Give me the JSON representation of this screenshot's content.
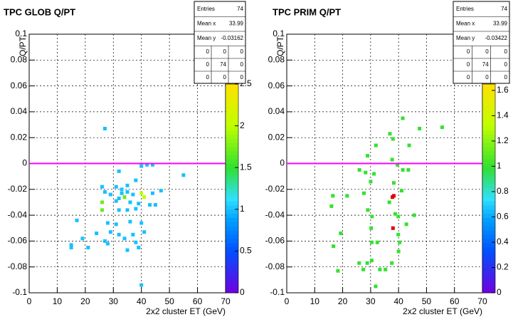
{
  "chart_data": [
    {
      "type": "heatmap2d",
      "title": "TPC GLOB Q/PT",
      "x_label": "2x2 cluster ET (GeV)",
      "y_label": "Q/PT",
      "xlim": [
        0,
        70
      ],
      "xticks": [
        0,
        10,
        20,
        30,
        40,
        50,
        60,
        70
      ],
      "ylim": [
        -0.1,
        0.1
      ],
      "yticks": [
        -0.1,
        -0.08,
        -0.06,
        -0.04,
        -0.02,
        0,
        0.02,
        0.04,
        0.06,
        0.08,
        0.1
      ],
      "zlim": [
        0,
        2.5
      ],
      "zticks": [
        0,
        0.5,
        1,
        1.5,
        2,
        2.5
      ],
      "grid": true,
      "reference_line": {
        "y": 0,
        "color": "#ff00ff"
      },
      "x": [
        27,
        32,
        40,
        42,
        44,
        55,
        26,
        31,
        35,
        38,
        33,
        27,
        29,
        33,
        35,
        37,
        40,
        41,
        44,
        47,
        34,
        32,
        26,
        31,
        36,
        39,
        43,
        45,
        26,
        32,
        35,
        38,
        17,
        28,
        31,
        36,
        40,
        24,
        29,
        32,
        37,
        41,
        19,
        27,
        28,
        34,
        38,
        15,
        15,
        21,
        35,
        39,
        40
      ],
      "y": [
        0.027,
        -0.006,
        -0.002,
        -0.001,
        -0.001,
        -0.009,
        -0.018,
        -0.018,
        -0.017,
        -0.013,
        -0.02,
        -0.022,
        -0.024,
        -0.023,
        -0.022,
        -0.024,
        -0.023,
        -0.026,
        -0.023,
        -0.021,
        -0.026,
        -0.027,
        -0.03,
        -0.029,
        -0.03,
        -0.031,
        -0.032,
        -0.032,
        -0.036,
        -0.036,
        -0.036,
        -0.035,
        -0.044,
        -0.046,
        -0.047,
        -0.045,
        -0.046,
        -0.054,
        -0.053,
        -0.055,
        -0.055,
        -0.053,
        -0.058,
        -0.06,
        -0.062,
        -0.058,
        -0.061,
        -0.063,
        -0.065,
        -0.065,
        -0.067,
        -0.065,
        -0.094
      ],
      "z": [
        1,
        1,
        1,
        1,
        1,
        1,
        1,
        1,
        1,
        1,
        1,
        1,
        1,
        1,
        1,
        1,
        2,
        2,
        1,
        1,
        1.7,
        1,
        1.7,
        1,
        1,
        1,
        1,
        1,
        1.7,
        1,
        1,
        1,
        1,
        1,
        1,
        1,
        1,
        1,
        1,
        1,
        1,
        1,
        1,
        1,
        1,
        1,
        1,
        1,
        1,
        1,
        1,
        1,
        1
      ],
      "stats": {
        "labels": [
          "Entries",
          "Mean x",
          "Mean y"
        ],
        "values": [
          74,
          33.99,
          -0.03162
        ],
        "grid": [
          [
            0,
            0,
            0
          ],
          [
            0,
            74,
            0
          ],
          [
            0,
            0,
            0
          ]
        ]
      }
    },
    {
      "type": "heatmap2d",
      "title": "TPC PRIM  Q/PT",
      "x_label": "2x2 cluster ET (GeV)",
      "y_label": "Q/PT",
      "xlim": [
        0,
        70
      ],
      "xticks": [
        0,
        10,
        20,
        30,
        40,
        50,
        60,
        70
      ],
      "ylim": [
        -0.1,
        0.1
      ],
      "yticks": [
        -0.1,
        -0.08,
        -0.06,
        -0.04,
        -0.02,
        0,
        0.02,
        0.04,
        0.06,
        0.08,
        0.1
      ],
      "zlim": [
        0,
        1.65
      ],
      "zticks": [
        0,
        0.2,
        0.4,
        0.6,
        0.8,
        1,
        1.2,
        1.4,
        1.6
      ],
      "grid": true,
      "reference_line": {
        "y": 0,
        "color": "#ff00ff"
      },
      "x": [
        41.5,
        55.6,
        47.5,
        36.9,
        38,
        43.8,
        31.9,
        28.9,
        37.7,
        39.6,
        41.5,
        43.5,
        26,
        28.2,
        31.2,
        16.5,
        21.6,
        27.6,
        30,
        38.3,
        41.1,
        37.8,
        36.7,
        29,
        30.5,
        38.8,
        39.9,
        42.8,
        45.6,
        38,
        30.2,
        19.3,
        30.4,
        32.4,
        39.9,
        40.4,
        16.7,
        40,
        25.9,
        28.8,
        30.4,
        33.3,
        35.3,
        37.6,
        27.4,
        18.3,
        31.8,
        16,
        38.3
      ],
      "y": [
        0.035,
        0.028,
        0.027,
        0.023,
        0.019,
        0.014,
        0.014,
        0.006,
        0.003,
        -0.001,
        -0.005,
        -0.005,
        -0.005,
        -0.007,
        -0.008,
        -0.025,
        -0.025,
        -0.023,
        -0.014,
        -0.015,
        -0.021,
        -0.026,
        -0.03,
        -0.036,
        -0.041,
        -0.039,
        -0.041,
        -0.047,
        -0.04,
        -0.05,
        -0.05,
        -0.054,
        -0.061,
        -0.061,
        -0.055,
        -0.061,
        -0.064,
        -0.068,
        -0.077,
        -0.077,
        -0.075,
        -0.082,
        -0.082,
        -0.077,
        -0.082,
        -0.083,
        -0.095,
        -0.033,
        -0.025
      ],
      "z": [
        1,
        1,
        1,
        1,
        1,
        1,
        1,
        1,
        1,
        1,
        1,
        1,
        1,
        1,
        1,
        1,
        1,
        1,
        1,
        1,
        1,
        2,
        1,
        1,
        1,
        1,
        1,
        1,
        1,
        2,
        1,
        1,
        1,
        1,
        1,
        1,
        1,
        1,
        1,
        1,
        1,
        1,
        1,
        1,
        1,
        1,
        1,
        1,
        2
      ],
      "stats": {
        "labels": [
          "Entries",
          "Mean x",
          "Mean y"
        ],
        "values": [
          74,
          33.99,
          -0.03422
        ],
        "grid": [
          [
            0,
            0,
            0
          ],
          [
            0,
            74,
            0
          ],
          [
            0,
            0,
            0
          ]
        ]
      }
    }
  ]
}
